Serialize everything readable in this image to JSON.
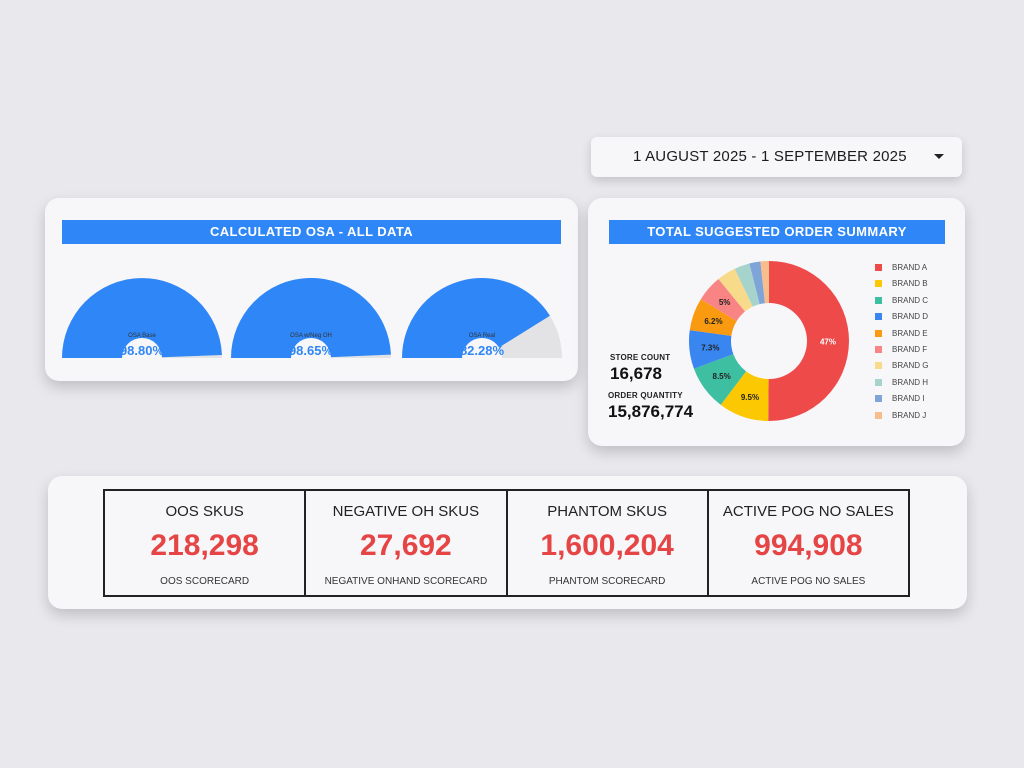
{
  "date_range": {
    "label": "1 AUGUST 2025 - 1 SEPTEMBER 2025"
  },
  "osa": {
    "title": "CALCULATED OSA - ALL DATA",
    "gauges": [
      {
        "label": "OSA Base",
        "value_text": "98.80%",
        "value": 98.8
      },
      {
        "label": "OSA w/Neg OH",
        "value_text": "98.65%",
        "value": 98.65
      },
      {
        "label": "OSA Real",
        "value_text": "82.28%",
        "value": 82.28
      }
    ],
    "colors": {
      "fill": "#2f86f6",
      "track": "#e3e3e6"
    }
  },
  "order_summary": {
    "title": "TOTAL SUGGESTED ORDER SUMMARY",
    "store_count_label": "STORE COUNT",
    "store_count": "16,678",
    "order_quantity_label": "ORDER QUANTITY",
    "order_quantity": "15,876,774"
  },
  "chart_data": {
    "type": "pie",
    "variant": "donut",
    "categories": [
      "BRAND A",
      "BRAND B",
      "BRAND C",
      "BRAND D",
      "BRAND E",
      "BRAND F",
      "BRAND G",
      "BRAND H",
      "BRAND I",
      "BRAND J"
    ],
    "values": [
      47,
      9.5,
      8.5,
      7.3,
      6.2,
      5,
      3.6,
      2.9,
      2.1,
      1.6
    ],
    "labels": [
      "47%",
      "9.5%",
      "8.5%",
      "7.3%",
      "6.2%",
      "5%",
      "",
      "",
      "",
      ""
    ],
    "colors": [
      "#ef4a4a",
      "#fbc802",
      "#3ebfa2",
      "#3a86f1",
      "#f99a10",
      "#f88484",
      "#f7db8b",
      "#a6d4cd",
      "#7fa4d8",
      "#f8bd8c"
    ],
    "legend": "right"
  },
  "scorecards": [
    {
      "title": "OOS SKUS",
      "value": "218,298",
      "caption": "OOS SCORECARD"
    },
    {
      "title": "NEGATIVE OH SKUS",
      "value": "27,692",
      "caption": "NEGATIVE ONHAND SCORECARD"
    },
    {
      "title": "PHANTOM SKUS",
      "value": "1,600,204",
      "caption": "PHANTOM SCORECARD"
    },
    {
      "title": "ACTIVE POG NO SALES",
      "value": "994,908",
      "caption": "ACTIVE POG NO SALES"
    }
  ]
}
